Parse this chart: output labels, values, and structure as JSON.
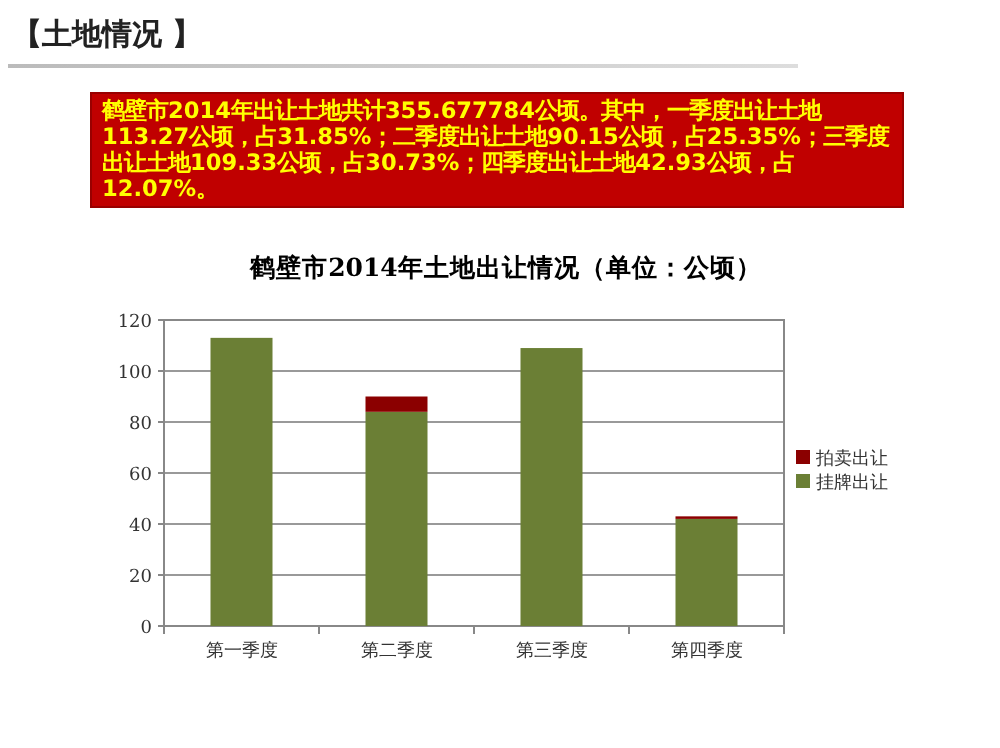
{
  "chart_data": {
    "type": "bar",
    "title": "鹤壁市2014年土地出让情况（单位：公顷）",
    "annotations": [
      "【土地情况 】",
      "鹤壁市2014年出让土地共计355.677784公顷。其中，一季度出让土地113.27公顷，占31.85%；二季度出让土地90.15公顷，占25.35%；三季度出让土地109.33公顷，占30.73%；四季度出让土地42.93公顷，占12.07%。"
    ],
    "categories": [
      "第一季度",
      "第二季度",
      "第三季度",
      "第四季度"
    ],
    "series": [
      {
        "name": "挂牌出让",
        "color": "#6b7f35",
        "values": [
          113,
          84,
          109,
          42
        ]
      },
      {
        "name": "拍卖出让",
        "color": "#8b0000",
        "values": [
          0,
          6,
          0,
          1
        ]
      }
    ],
    "stacked": true,
    "ylim": [
      0,
      120
    ],
    "yticks": [
      0,
      20,
      40,
      60,
      80,
      100,
      120
    ],
    "grid": "y",
    "legend": "right"
  }
}
